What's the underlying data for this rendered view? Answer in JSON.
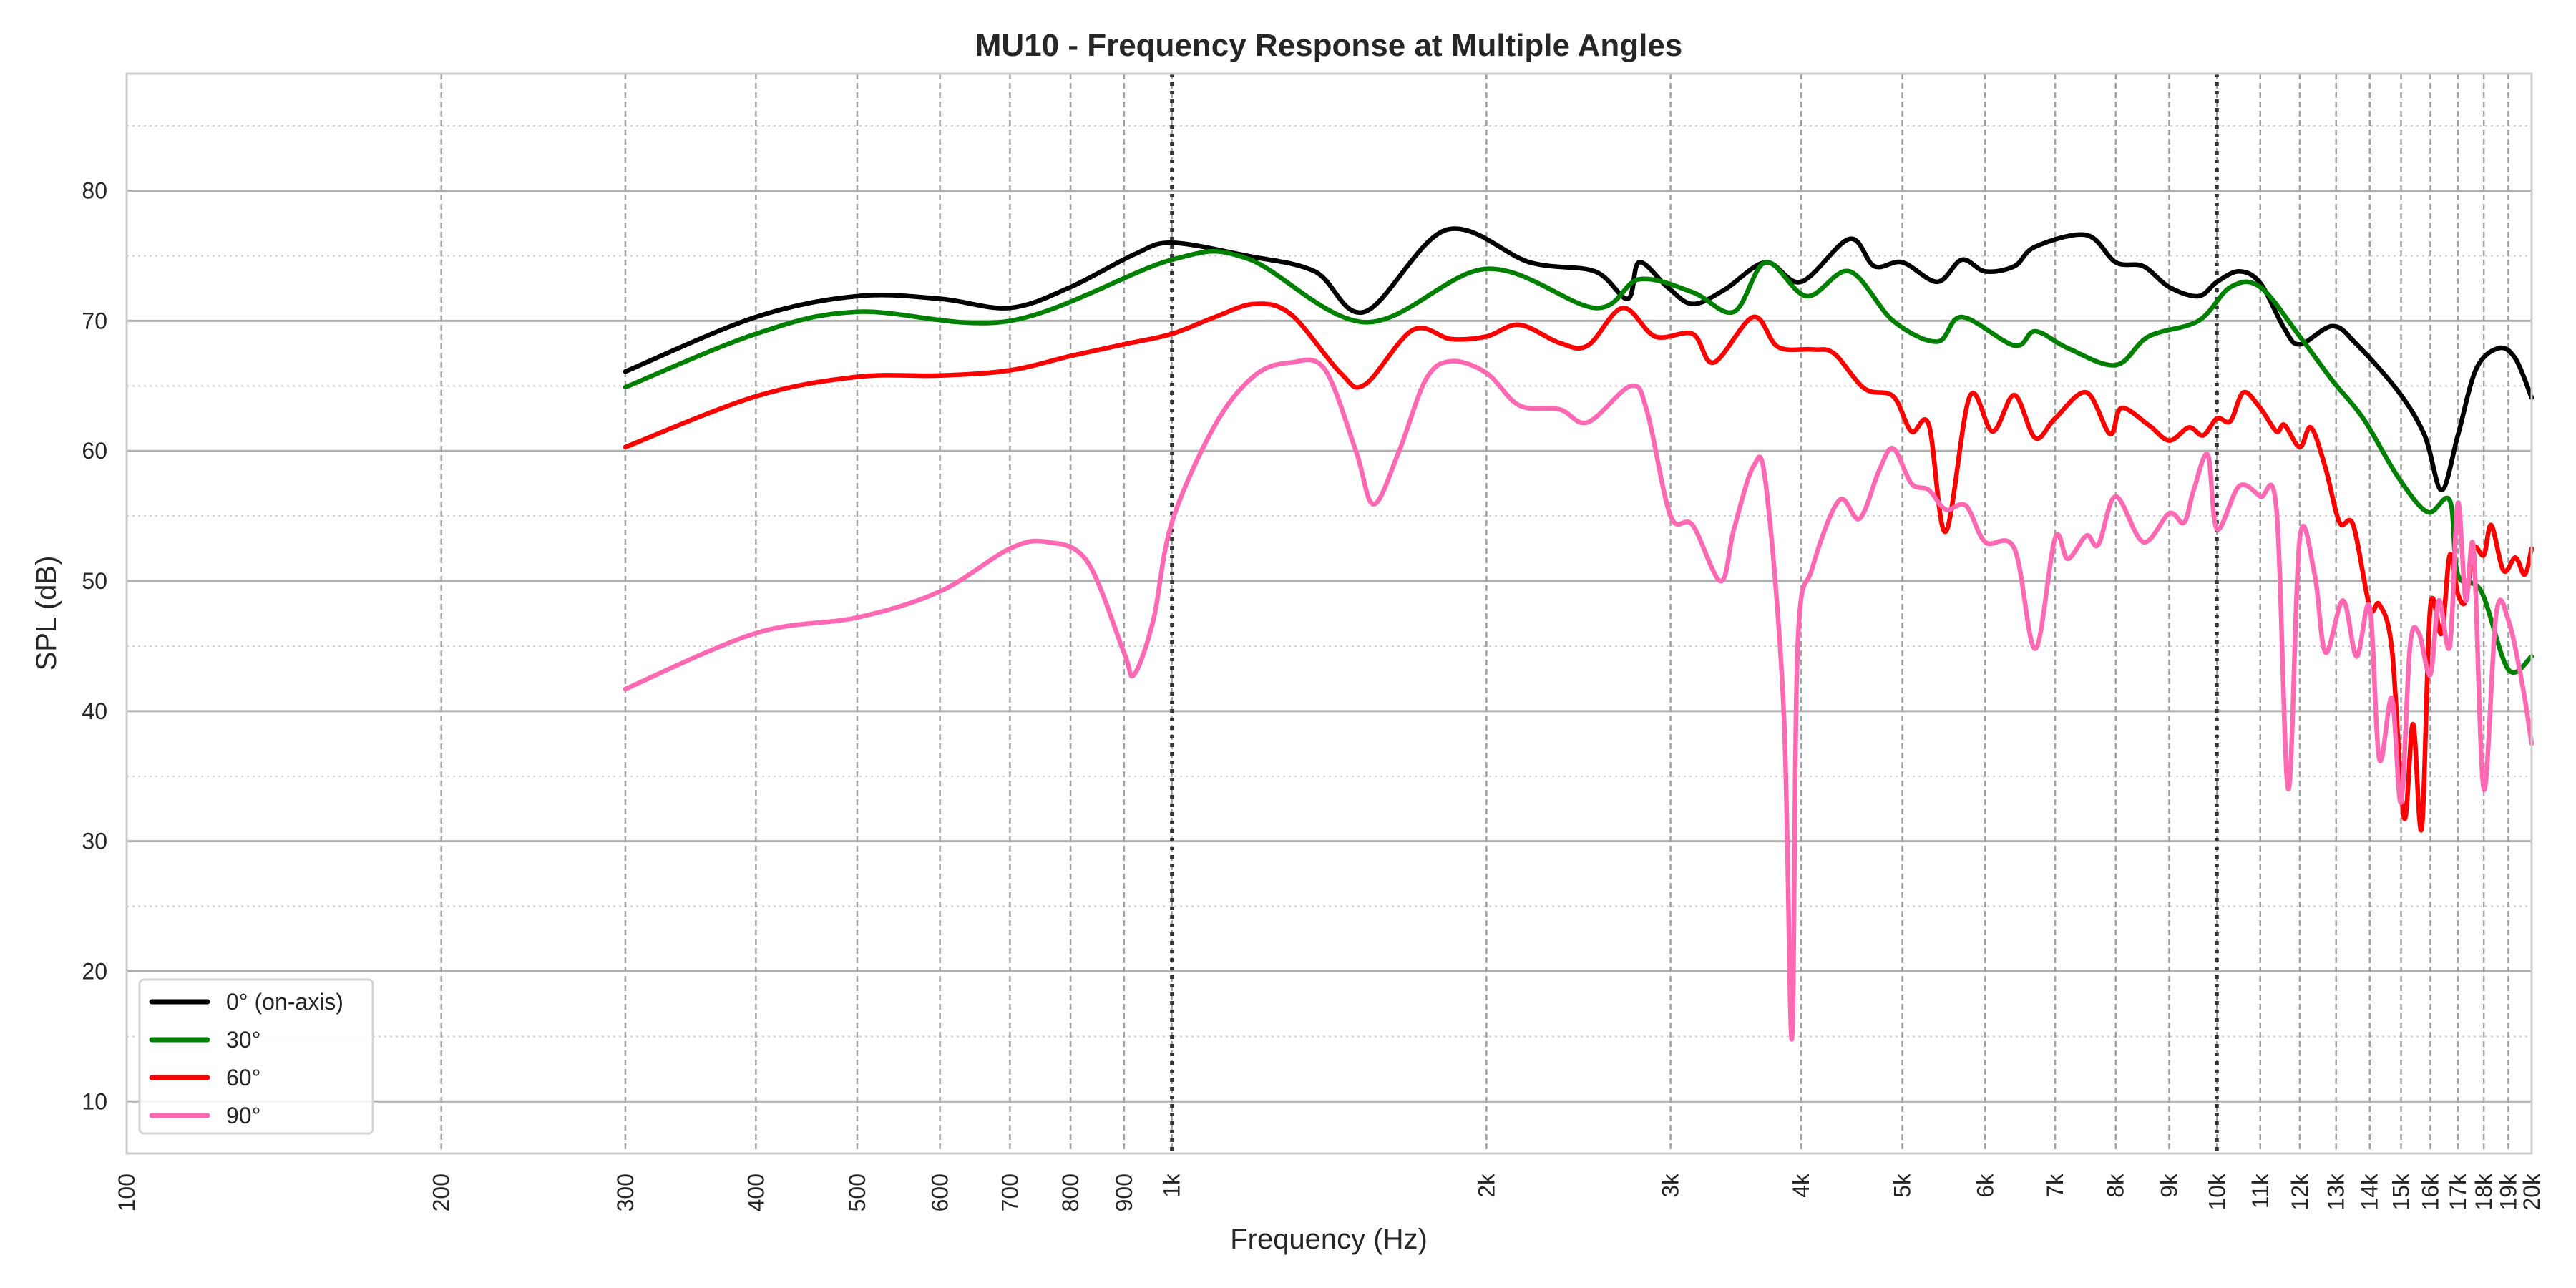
{
  "chart_data": {
    "type": "line",
    "title": "MU10 - Frequency Response at Multiple Angles",
    "xlabel": "Frequency (Hz)",
    "ylabel": "SPL (dB)",
    "xscale": "log",
    "xlim": [
      100,
      20000
    ],
    "ylim": [
      6,
      89
    ],
    "grid": true,
    "legend_position": "lower-left",
    "x_ticks": [
      100,
      200,
      300,
      400,
      500,
      600,
      700,
      800,
      900,
      1000,
      2000,
      3000,
      4000,
      5000,
      6000,
      7000,
      8000,
      9000,
      10000,
      11000,
      12000,
      13000,
      14000,
      15000,
      16000,
      17000,
      18000,
      19000,
      20000
    ],
    "x_tick_labels": [
      "100",
      "200",
      "300",
      "400",
      "500",
      "600",
      "700",
      "800",
      "900",
      "1k",
      "2k",
      "3k",
      "4k",
      "5k",
      "6k",
      "7k",
      "8k",
      "9k",
      "10k",
      "11k",
      "12k",
      "13k",
      "14k",
      "15k",
      "16k",
      "17k",
      "18k",
      "19k",
      "20k"
    ],
    "y_ticks": [
      10,
      20,
      30,
      40,
      50,
      60,
      70,
      80
    ],
    "y_tick_labels": [
      "10",
      "20",
      "30",
      "40",
      "50",
      "60",
      "70",
      "80"
    ],
    "reference_lines_hz": [
      1000,
      10000
    ],
    "series": [
      {
        "name": "0° (on-axis)",
        "color": "#000000",
        "x": [
          300,
          400,
          500,
          600,
          700,
          800,
          920,
          1000,
          1180,
          1370,
          1530,
          1830,
          2200,
          2540,
          2730,
          2800,
          2980,
          3150,
          3380,
          3700,
          4000,
          4450,
          4700,
          5000,
          5400,
          5700,
          6000,
          6400,
          6700,
          7500,
          8000,
          8500,
          9000,
          9600,
          10000,
          10500,
          11000,
          11600,
          12000,
          12900,
          13600,
          14900,
          15800,
          16400,
          17000,
          17700,
          18600,
          19300,
          20000
        ],
        "y": [
          66.1,
          70.3,
          71.9,
          71.7,
          71,
          72.6,
          75.1,
          76,
          75,
          73.8,
          70.7,
          77,
          74.5,
          73.8,
          71.7,
          74.5,
          72.6,
          71.3,
          72.4,
          74.5,
          73,
          76.3,
          74.2,
          74.5,
          73,
          74.7,
          73.8,
          74.2,
          75.7,
          76.6,
          74.5,
          74.2,
          72.6,
          71.9,
          73,
          73.8,
          72.9,
          69.4,
          68.2,
          69.6,
          68.2,
          64.6,
          61.2,
          57,
          61.2,
          66.3,
          67.9,
          67.1,
          64.1
        ]
      },
      {
        "name": "30°",
        "color": "#008000",
        "x": [
          300,
          400,
          500,
          700,
          1000,
          1180,
          1530,
          2000,
          2540,
          2800,
          3150,
          3450,
          3700,
          4050,
          4450,
          4900,
          5400,
          5700,
          6400,
          6700,
          7200,
          8000,
          8600,
          9600,
          10300,
          11000,
          12000,
          12900,
          13800,
          14900,
          15900,
          16700,
          17000,
          17900,
          19000,
          20000
        ],
        "y": [
          64.9,
          69,
          70.7,
          70,
          74.7,
          74.8,
          69.9,
          74,
          71,
          73.2,
          72.2,
          70.7,
          74.5,
          71.9,
          73.8,
          70,
          68.4,
          70.3,
          68.1,
          69.2,
          67.9,
          66.6,
          68.8,
          70,
          72.6,
          72.6,
          68.8,
          65.4,
          62.5,
          58,
          55.3,
          56.2,
          50.5,
          49.2,
          43.2,
          44.2
        ]
      },
      {
        "name": "60°",
        "color": "#ff0000",
        "x": [
          300,
          400,
          500,
          600,
          700,
          800,
          900,
          1000,
          1100,
          1200,
          1300,
          1450,
          1530,
          1700,
          1850,
          2000,
          2150,
          2350,
          2500,
          2700,
          2900,
          3150,
          3300,
          3600,
          3800,
          4100,
          4300,
          4600,
          4900,
          5100,
          5300,
          5500,
          5800,
          6100,
          6400,
          6700,
          7000,
          7500,
          7900,
          8100,
          8600,
          9000,
          9400,
          9700,
          10000,
          10300,
          10600,
          11000,
          11400,
          11600,
          12000,
          12300,
          12700,
          13100,
          13500,
          14000,
          14300,
          14700,
          15100,
          15400,
          15700,
          16000,
          16400,
          16700,
          17000,
          17300,
          17600,
          18000,
          18300,
          18800,
          19300,
          19700,
          20000
        ],
        "y": [
          60.3,
          64.2,
          65.7,
          65.8,
          66.2,
          67.3,
          68.2,
          69,
          70.3,
          71.3,
          70.5,
          66,
          65.1,
          69.3,
          68.6,
          68.8,
          69.7,
          68.3,
          68.1,
          71,
          68.8,
          69,
          66.8,
          70.3,
          68,
          67.8,
          67.5,
          64.8,
          64.2,
          61.5,
          62,
          53.8,
          64.2,
          61.5,
          64.3,
          61,
          62.5,
          64.5,
          61.3,
          63.3,
          62,
          60.8,
          61.8,
          61.2,
          62.5,
          62.3,
          64.5,
          63.3,
          61.5,
          62,
          60.3,
          61.8,
          58.7,
          54.5,
          54.3,
          48,
          48.2,
          44.8,
          31.8,
          39,
          31,
          48,
          46,
          52,
          49,
          48.5,
          52.5,
          52,
          54.3,
          50.8,
          51.8,
          50.5,
          52.5
        ]
      },
      {
        "name": "90°",
        "color": "#ff69b4",
        "x": [
          300,
          400,
          500,
          600,
          700,
          760,
          830,
          900,
          920,
          960,
          1000,
          1100,
          1200,
          1300,
          1400,
          1500,
          1560,
          1650,
          1750,
          1850,
          2000,
          2150,
          2350,
          2500,
          2750,
          2850,
          3000,
          3150,
          3350,
          3450,
          3600,
          3700,
          3850,
          3920,
          3970,
          4100,
          4350,
          4550,
          4750,
          4900,
          5100,
          5300,
          5500,
          5750,
          6000,
          6400,
          6700,
          7000,
          7200,
          7500,
          7700,
          8000,
          8500,
          9000,
          9300,
          9500,
          9800,
          10000,
          10500,
          11000,
          11400,
          11700,
          12000,
          12400,
          12700,
          13200,
          13600,
          14000,
          14300,
          14700,
          15000,
          15300,
          15600,
          16000,
          16300,
          16700,
          17000,
          17300,
          17600,
          18000,
          18500,
          19000,
          19600,
          20000
        ],
        "y": [
          41.7,
          46,
          47.2,
          49.2,
          52.5,
          53,
          51.5,
          44.5,
          42.8,
          47,
          54.5,
          62,
          65.8,
          66.8,
          66.3,
          60,
          55.9,
          60,
          65.5,
          66.9,
          66,
          63.5,
          63.2,
          62.2,
          65,
          63,
          55,
          54.3,
          50,
          54,
          58.8,
          57.5,
          40,
          14.8,
          45,
          51,
          56.2,
          54.8,
          58.5,
          60.2,
          57.5,
          57,
          55.5,
          55.8,
          53,
          52.5,
          44.8,
          53.3,
          51.7,
          53.5,
          52.8,
          56.5,
          53,
          55.2,
          54.5,
          57,
          59.7,
          54,
          57.3,
          56.5,
          55.5,
          34,
          53.3,
          50.5,
          44.5,
          48.5,
          44.2,
          48,
          36.3,
          41,
          33,
          45,
          46,
          42.8,
          48.5,
          45,
          56,
          48.5,
          52.5,
          34,
          47.5,
          47,
          42,
          37.5
        ]
      }
    ]
  }
}
